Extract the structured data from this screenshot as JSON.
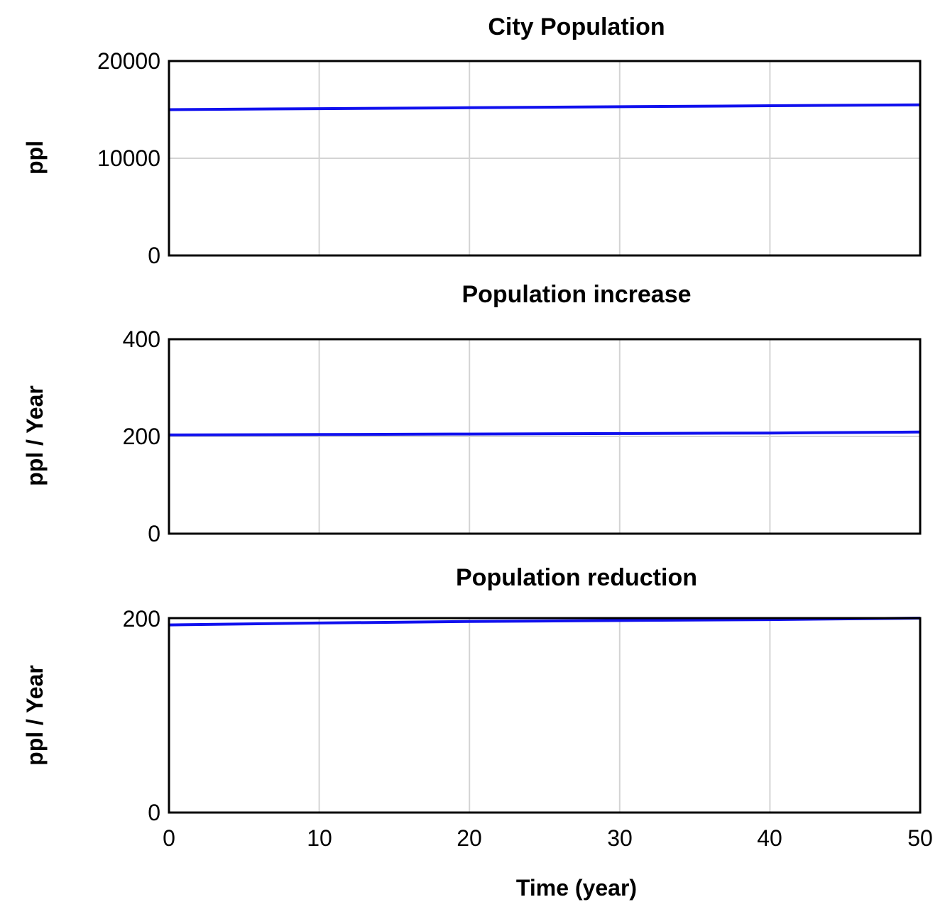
{
  "colors": {
    "series": "#1010ee",
    "grid": "#d4d4d4",
    "frame": "#000000",
    "background": "#ffffff"
  },
  "x_axis": {
    "label": "Time (year)",
    "ticks": [
      "0",
      "10",
      "20",
      "30",
      "40",
      "50"
    ]
  },
  "chart_data": [
    {
      "type": "line",
      "title": "City Population",
      "xlabel": "Time (year)",
      "ylabel": "ppl",
      "xlim": [
        0,
        50
      ],
      "ylim": [
        0,
        20000
      ],
      "yticks": [
        0,
        10000,
        20000
      ],
      "ytick_labels": [
        "0",
        "10000",
        "20000"
      ],
      "grid": true,
      "series": [
        {
          "name": "City Population",
          "x": [
            0,
            10,
            20,
            30,
            40,
            50
          ],
          "values": [
            15000,
            15100,
            15200,
            15300,
            15400,
            15500
          ]
        }
      ]
    },
    {
      "type": "line",
      "title": "Population increase",
      "xlabel": "Time (year)",
      "ylabel": "ppl / Year",
      "xlim": [
        0,
        50
      ],
      "ylim": [
        0,
        400
      ],
      "yticks": [
        0,
        200,
        400
      ],
      "ytick_labels": [
        "0",
        "200",
        "400"
      ],
      "grid": true,
      "series": [
        {
          "name": "Population increase",
          "x": [
            0,
            10,
            20,
            30,
            40,
            50
          ],
          "values": [
            203,
            204,
            205,
            206,
            207,
            209
          ]
        }
      ]
    },
    {
      "type": "line",
      "title": "Population reduction",
      "xlabel": "Time (year)",
      "ylabel": "ppl / Year",
      "xlim": [
        0,
        50
      ],
      "ylim": [
        0,
        200
      ],
      "yticks": [
        0,
        200
      ],
      "ytick_labels": [
        "0",
        "200"
      ],
      "grid": true,
      "series": [
        {
          "name": "Population reduction",
          "x": [
            0,
            10,
            20,
            30,
            40,
            50
          ],
          "values": [
            193,
            195,
            196.5,
            197.5,
            198.5,
            200
          ]
        }
      ]
    }
  ]
}
